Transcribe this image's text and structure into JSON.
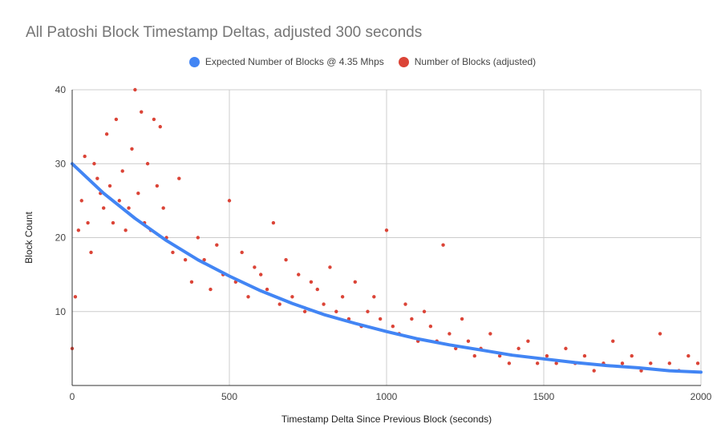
{
  "chart_data": {
    "type": "scatter",
    "title": "All Patoshi Block Timestamp Deltas, adjusted 300 seconds",
    "xlabel": "Timestamp Delta Since Previous Block (seconds)",
    "ylabel": "Block Count",
    "xlim": [
      0,
      2000
    ],
    "ylim": [
      0,
      40
    ],
    "x_ticks": [
      "0",
      "500",
      "1000",
      "1500",
      "2000"
    ],
    "y_ticks": [
      "10",
      "20",
      "30",
      "40"
    ],
    "grid": true,
    "legend": "top-center",
    "series": [
      {
        "name": "Expected Number of Blocks @ 4.35 Mhps",
        "type": "line",
        "color": "#4285f4",
        "x": [
          0,
          100,
          200,
          300,
          400,
          500,
          600,
          700,
          800,
          900,
          1000,
          1100,
          1200,
          1300,
          1400,
          1500,
          1600,
          1700,
          1800,
          1900,
          2000
        ],
        "y": [
          30,
          26.0,
          22.6,
          19.6,
          17.0,
          14.8,
          12.8,
          11.1,
          9.6,
          8.4,
          7.3,
          6.3,
          5.5,
          4.8,
          4.1,
          3.6,
          3.1,
          2.7,
          2.4,
          2.0,
          1.8
        ]
      },
      {
        "name": "Number of Blocks (adjusted)",
        "type": "scatter",
        "color": "#db4437",
        "x": [
          0,
          10,
          20,
          30,
          40,
          50,
          60,
          70,
          80,
          90,
          100,
          110,
          120,
          130,
          140,
          150,
          160,
          170,
          180,
          190,
          200,
          210,
          220,
          230,
          240,
          250,
          260,
          270,
          280,
          290,
          300,
          320,
          340,
          360,
          380,
          400,
          420,
          440,
          460,
          480,
          500,
          520,
          540,
          560,
          580,
          600,
          620,
          640,
          660,
          680,
          700,
          720,
          740,
          760,
          780,
          800,
          820,
          840,
          860,
          880,
          900,
          920,
          940,
          960,
          980,
          1000,
          1020,
          1040,
          1060,
          1080,
          1100,
          1120,
          1140,
          1160,
          1180,
          1200,
          1220,
          1240,
          1260,
          1280,
          1300,
          1330,
          1360,
          1390,
          1420,
          1450,
          1480,
          1510,
          1540,
          1570,
          1600,
          1630,
          1660,
          1690,
          1720,
          1750,
          1780,
          1810,
          1840,
          1870,
          1900,
          1930,
          1960,
          1990
        ],
        "y": [
          5,
          12,
          21,
          25,
          31,
          22,
          18,
          30,
          28,
          26,
          24,
          34,
          27,
          22,
          36,
          25,
          29,
          21,
          24,
          32,
          40,
          26,
          37,
          22,
          30,
          21,
          36,
          27,
          35,
          24,
          20,
          18,
          28,
          17,
          14,
          20,
          17,
          13,
          19,
          15,
          25,
          14,
          18,
          12,
          16,
          15,
          13,
          22,
          11,
          17,
          12,
          15,
          10,
          14,
          13,
          11,
          16,
          10,
          12,
          9,
          14,
          8,
          10,
          12,
          9,
          21,
          8,
          7,
          11,
          9,
          6,
          10,
          8,
          6,
          19,
          7,
          5,
          9,
          6,
          4,
          5,
          7,
          4,
          3,
          5,
          6,
          3,
          4,
          3,
          5,
          3,
          4,
          2,
          3,
          6,
          3,
          4,
          2,
          3,
          7,
          3,
          2,
          4,
          3
        ]
      }
    ]
  }
}
